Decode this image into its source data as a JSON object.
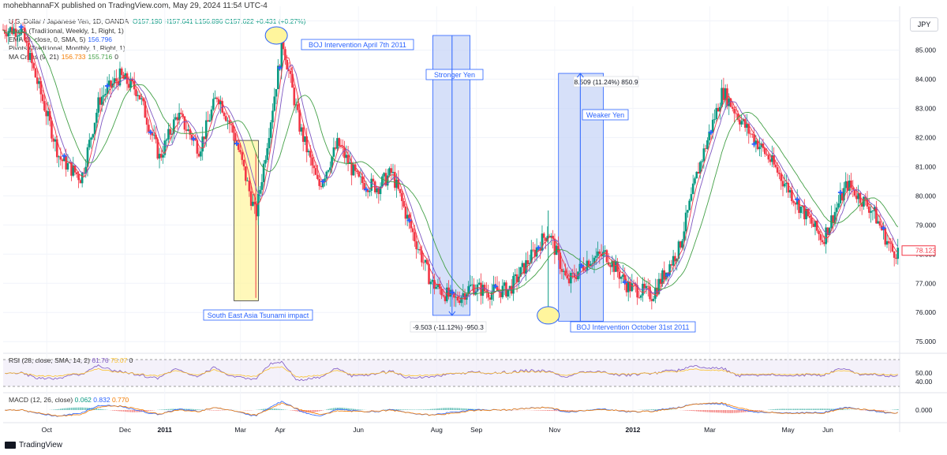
{
  "header": {
    "published": "mohebhannaFX published on TradingView.com, May 29, 2024 11:54 UTC-4",
    "symbol": "U.S. Dollar / Japanese Yen, 1D, OANDA",
    "ohlc": {
      "o": "O157.190",
      "h": "H157.641",
      "l": "L156.896",
      "c": "C157.622",
      "chg": "+0.431 (+0.27%)"
    },
    "indicators": [
      {
        "label": "Pivots (Traditional, Weekly, 1, Right, 1)"
      },
      {
        "label": "EMA (9, close, 0, SMA, 5)",
        "value": "156.796"
      },
      {
        "label": "Pivots (Traditional, Monthly, 1, Right, 1)"
      },
      {
        "label": "MA Cross (9, 21)",
        "value1": "156.733",
        "value2": "155.716",
        "value3": "0"
      }
    ]
  },
  "chart_data": {
    "type": "candlestick",
    "currency_label": "JPY",
    "price_axis": {
      "ticks": [
        "86.000",
        "85.000",
        "84.000",
        "83.000",
        "82.000",
        "81.000",
        "80.000",
        "79.000",
        "78.000",
        "77.000",
        "76.000",
        "75.000"
      ],
      "ylim": [
        74.6,
        86.5
      ],
      "last_price": "78.123"
    },
    "time_axis": {
      "labels": [
        "Oct",
        "Dec",
        "2011",
        "Mar",
        "Apr",
        "Jun",
        "Aug",
        "Sep",
        "Nov",
        "2012",
        "Mar",
        "May",
        "Jun"
      ]
    },
    "close_series_approx": [
      [
        "2010-09-15",
        85.7
      ],
      [
        "2010-10-01",
        83.4
      ],
      [
        "2010-10-15",
        81.3
      ],
      [
        "2010-11-01",
        80.6
      ],
      [
        "2010-11-15",
        83.3
      ],
      [
        "2010-12-01",
        84.1
      ],
      [
        "2010-12-15",
        83.6
      ],
      [
        "2011-01-01",
        81.3
      ],
      [
        "2011-01-15",
        82.8
      ],
      [
        "2011-02-01",
        81.6
      ],
      [
        "2011-02-15",
        83.5
      ],
      [
        "2011-03-01",
        82.0
      ],
      [
        "2011-03-17",
        79.3
      ],
      [
        "2011-04-01",
        83.6
      ],
      [
        "2011-04-07",
        85.3
      ],
      [
        "2011-04-20",
        82.4
      ],
      [
        "2011-05-05",
        80.3
      ],
      [
        "2011-05-20",
        81.8
      ],
      [
        "2011-06-05",
        80.5
      ],
      [
        "2011-06-20",
        80.3
      ],
      [
        "2011-07-01",
        80.8
      ],
      [
        "2011-07-15",
        79.0
      ],
      [
        "2011-08-01",
        77.0
      ],
      [
        "2011-08-19",
        76.4
      ],
      [
        "2011-09-01",
        76.9
      ],
      [
        "2011-09-15",
        76.7
      ],
      [
        "2011-10-01",
        76.8
      ],
      [
        "2011-10-31",
        78.8
      ],
      [
        "2011-11-15",
        77.0
      ],
      [
        "2011-12-01",
        77.8
      ],
      [
        "2011-12-15",
        78.0
      ],
      [
        "2012-01-01",
        76.9
      ],
      [
        "2012-01-20",
        76.6
      ],
      [
        "2012-02-10",
        78.2
      ],
      [
        "2012-02-25",
        80.9
      ],
      [
        "2012-03-15",
        83.6
      ],
      [
        "2012-04-01",
        82.4
      ],
      [
        "2012-04-20",
        81.3
      ],
      [
        "2012-05-10",
        79.9
      ],
      [
        "2012-06-01",
        78.5
      ],
      [
        "2012-06-20",
        80.4
      ],
      [
        "2012-07-10",
        79.5
      ],
      [
        "2012-07-25",
        78.1
      ]
    ],
    "annotations": [
      {
        "text": "BOJ Intervention April 7th 2011"
      },
      {
        "text": "South East Asia Tsunami impact"
      },
      {
        "text": "Stronger Yen"
      },
      {
        "text": "-9.503 (-11.12%) -950.3"
      },
      {
        "text": "Weaker Yen"
      },
      {
        "text": "8.509 (11.24%) 850.9"
      },
      {
        "text": "BOJ Intervention October 31st 2011"
      }
    ],
    "rsi": {
      "label": "RSI (28, close, SMA, 14, 2)",
      "value1": "61.76",
      "value2": "75.07",
      "value3": "0",
      "ticks": [
        "50.00",
        "40.00"
      ]
    },
    "macd": {
      "label": "MACD (12, 26, close)",
      "value1": "0.062",
      "value2": "0.832",
      "value3": "0.770",
      "tick": "0.000"
    },
    "colors": {
      "up": "#089981",
      "down": "#f23645",
      "ema": "#2962ff",
      "ma_fast": "#f57c00",
      "ma_slow": "#43a047",
      "highlight_yellow": "#fff59d",
      "highlight_blue": "#c5d3f6"
    }
  },
  "footer": {
    "brand": "TradingView"
  }
}
